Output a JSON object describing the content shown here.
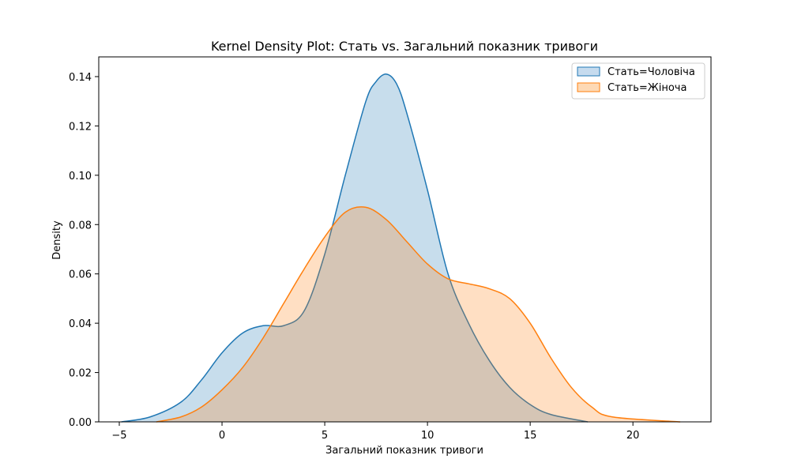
{
  "chart_data": {
    "type": "area",
    "title": "Kernel Density Plot: Стать vs. Загальний показник тривоги",
    "xlabel": "Загальний показник тривоги",
    "ylabel": "Density",
    "xlim": [
      -6,
      23.8
    ],
    "ylim": [
      0,
      0.148
    ],
    "xticks": [
      -5,
      0,
      5,
      10,
      15,
      20
    ],
    "yticks": [
      0.0,
      0.02,
      0.04,
      0.06,
      0.08,
      0.1,
      0.12,
      0.14
    ],
    "ytick_labels": [
      "0.00",
      "0.02",
      "0.04",
      "0.06",
      "0.08",
      "0.10",
      "0.12",
      "0.14"
    ],
    "legend_position": "top-right",
    "grid": false,
    "series": [
      {
        "name": "Стать=Чоловіча",
        "color": "#1f77b4",
        "fill": "#c6dbee",
        "points": [
          [
            -4.9,
            0.0
          ],
          [
            -3.5,
            0.002
          ],
          [
            -2.0,
            0.008
          ],
          [
            -1.0,
            0.017
          ],
          [
            0.0,
            0.028
          ],
          [
            1.0,
            0.036
          ],
          [
            2.0,
            0.039
          ],
          [
            3.0,
            0.039
          ],
          [
            4.0,
            0.045
          ],
          [
            5.0,
            0.068
          ],
          [
            6.0,
            0.1
          ],
          [
            7.0,
            0.13
          ],
          [
            7.5,
            0.138
          ],
          [
            8.0,
            0.141
          ],
          [
            8.5,
            0.137
          ],
          [
            9.0,
            0.125
          ],
          [
            10.0,
            0.094
          ],
          [
            11.0,
            0.06
          ],
          [
            12.0,
            0.04
          ],
          [
            13.0,
            0.025
          ],
          [
            14.0,
            0.014
          ],
          [
            15.0,
            0.007
          ],
          [
            16.0,
            0.003
          ],
          [
            17.8,
            0.0
          ]
        ]
      },
      {
        "name": "Стать=Жіноча",
        "color": "#ff7f0e",
        "fill": "#fdd9b5",
        "points": [
          [
            -3.2,
            0.0
          ],
          [
            -2.0,
            0.002
          ],
          [
            -1.0,
            0.006
          ],
          [
            0.0,
            0.013
          ],
          [
            1.0,
            0.022
          ],
          [
            2.0,
            0.034
          ],
          [
            3.0,
            0.048
          ],
          [
            4.0,
            0.062
          ],
          [
            5.0,
            0.075
          ],
          [
            6.0,
            0.085
          ],
          [
            7.0,
            0.087
          ],
          [
            8.0,
            0.082
          ],
          [
            9.0,
            0.073
          ],
          [
            10.0,
            0.064
          ],
          [
            11.0,
            0.058
          ],
          [
            12.0,
            0.056
          ],
          [
            13.0,
            0.054
          ],
          [
            14.0,
            0.05
          ],
          [
            15.0,
            0.04
          ],
          [
            16.0,
            0.026
          ],
          [
            17.0,
            0.014
          ],
          [
            18.0,
            0.006
          ],
          [
            19.0,
            0.002
          ],
          [
            22.3,
            0.0
          ]
        ]
      }
    ]
  }
}
